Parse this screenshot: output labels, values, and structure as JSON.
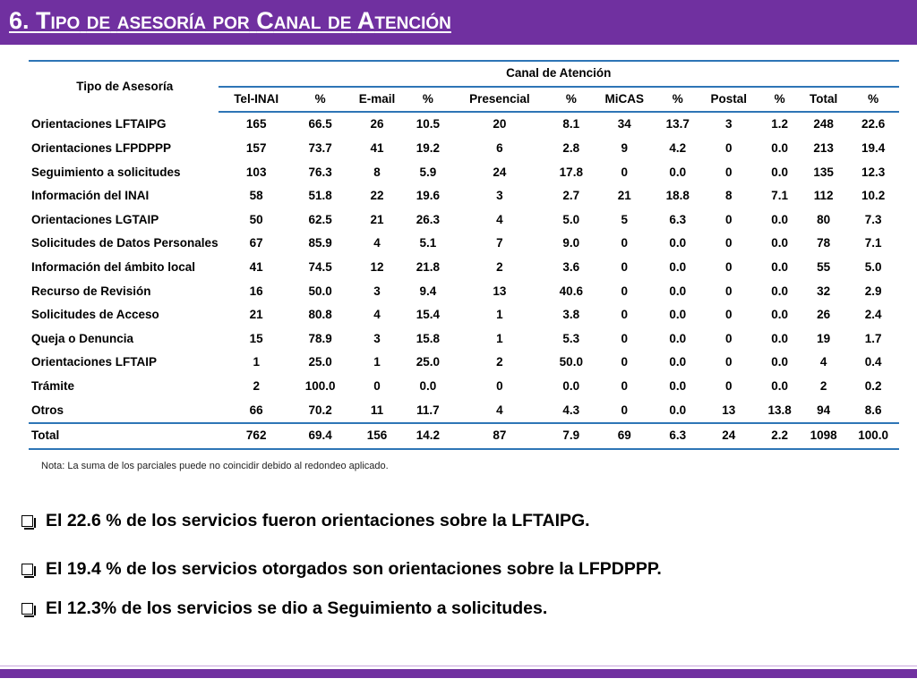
{
  "slide": {
    "title_num": "6.",
    "title_words": [
      {
        "first": "T",
        "rest": "ipo"
      },
      {
        "first": "",
        "rest": "de"
      },
      {
        "first": "",
        "rest": "asesoría"
      },
      {
        "first": "",
        "rest": "por"
      },
      {
        "first": "C",
        "rest": "anal"
      },
      {
        "first": "",
        "rest": "de"
      },
      {
        "first": "A",
        "rest": "tención"
      }
    ],
    "colors": {
      "accent": "#7030a0",
      "table_rule": "#2e75b6"
    }
  },
  "table": {
    "row_header": "Tipo de Asesoría",
    "group_header": "Canal de Atención",
    "columns": [
      "Tel-INAI",
      "%",
      "E-mail",
      "%",
      "Presencial",
      "%",
      "MiCAS",
      "%",
      "Postal",
      "%",
      "Total",
      "%"
    ],
    "rows": [
      {
        "label": "Orientaciones LFTAIPG",
        "values": [
          "165",
          "66.5",
          "26",
          "10.5",
          "20",
          "8.1",
          "34",
          "13.7",
          "3",
          "1.2",
          "248",
          "22.6"
        ]
      },
      {
        "label": "Orientaciones LFPDPPP",
        "values": [
          "157",
          "73.7",
          "41",
          "19.2",
          "6",
          "2.8",
          "9",
          "4.2",
          "0",
          "0.0",
          "213",
          "19.4"
        ]
      },
      {
        "label": "Seguimiento a solicitudes",
        "values": [
          "103",
          "76.3",
          "8",
          "5.9",
          "24",
          "17.8",
          "0",
          "0.0",
          "0",
          "0.0",
          "135",
          "12.3"
        ]
      },
      {
        "label": "Información del INAI",
        "values": [
          "58",
          "51.8",
          "22",
          "19.6",
          "3",
          "2.7",
          "21",
          "18.8",
          "8",
          "7.1",
          "112",
          "10.2"
        ]
      },
      {
        "label": "Orientaciones LGTAIP",
        "values": [
          "50",
          "62.5",
          "21",
          "26.3",
          "4",
          "5.0",
          "5",
          "6.3",
          "0",
          "0.0",
          "80",
          "7.3"
        ]
      },
      {
        "label": "Solicitudes de Datos Personales",
        "values": [
          "67",
          "85.9",
          "4",
          "5.1",
          "7",
          "9.0",
          "0",
          "0.0",
          "0",
          "0.0",
          "78",
          "7.1"
        ]
      },
      {
        "label": "Información del ámbito local",
        "values": [
          "41",
          "74.5",
          "12",
          "21.8",
          "2",
          "3.6",
          "0",
          "0.0",
          "0",
          "0.0",
          "55",
          "5.0"
        ]
      },
      {
        "label": "Recurso de Revisión",
        "values": [
          "16",
          "50.0",
          "3",
          "9.4",
          "13",
          "40.6",
          "0",
          "0.0",
          "0",
          "0.0",
          "32",
          "2.9"
        ]
      },
      {
        "label": "Solicitudes de Acceso",
        "values": [
          "21",
          "80.8",
          "4",
          "15.4",
          "1",
          "3.8",
          "0",
          "0.0",
          "0",
          "0.0",
          "26",
          "2.4"
        ]
      },
      {
        "label": "Queja o Denuncia",
        "values": [
          "15",
          "78.9",
          "3",
          "15.8",
          "1",
          "5.3",
          "0",
          "0.0",
          "0",
          "0.0",
          "19",
          "1.7"
        ]
      },
      {
        "label": "Orientaciones LFTAIP",
        "values": [
          "1",
          "25.0",
          "1",
          "25.0",
          "2",
          "50.0",
          "0",
          "0.0",
          "0",
          "0.0",
          "4",
          "0.4"
        ]
      },
      {
        "label": "Trámite",
        "values": [
          "2",
          "100.0",
          "0",
          "0.0",
          "0",
          "0.0",
          "0",
          "0.0",
          "0",
          "0.0",
          "2",
          "0.2"
        ]
      },
      {
        "label": "Otros",
        "values": [
          "66",
          "70.2",
          "11",
          "11.7",
          "4",
          "4.3",
          "0",
          "0.0",
          "13",
          "13.8",
          "94",
          "8.6"
        ]
      }
    ],
    "total": {
      "label": "Total",
      "values": [
        "762",
        "69.4",
        "156",
        "14.2",
        "87",
        "7.9",
        "69",
        "6.3",
        "24",
        "2.2",
        "1098",
        "100.0"
      ]
    }
  },
  "note": "Nota: La suma de los parciales puede no coincidir debido al redondeo aplicado.",
  "bullets": [
    "El 22.6 % de los servicios fueron orientaciones sobre la LFTAIPG.",
    "El 19.4 % de los servicios otorgados son orientaciones sobre la LFPDPPP.",
    "El 12.3% de los servicios se dio a Seguimiento a solicitudes."
  ]
}
